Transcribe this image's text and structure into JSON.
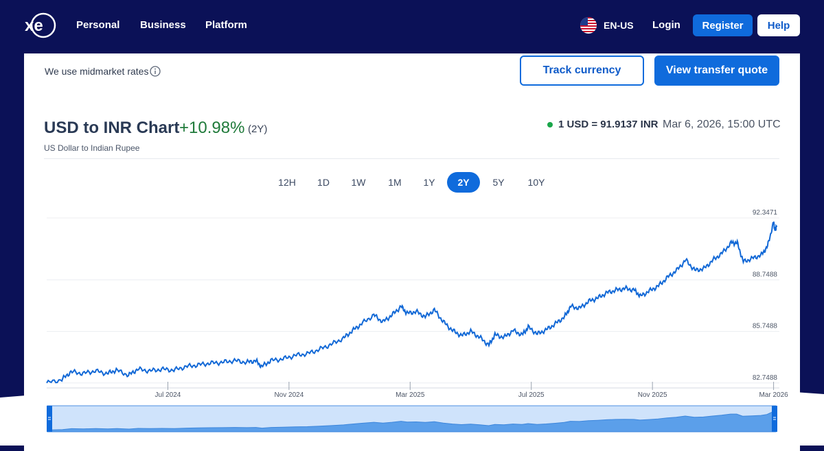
{
  "header": {
    "nav": [
      "Personal",
      "Business",
      "Platform"
    ],
    "language": "EN-US",
    "login_label": "Login",
    "register_label": "Register",
    "help_label": "Help"
  },
  "card": {
    "midmarket_text": "We use midmarket rates",
    "track_label": "Track currency",
    "quote_label": "View transfer quote"
  },
  "chart_header": {
    "title": "USD to INR Chart",
    "change": "+10.98%",
    "period": "(2Y)",
    "subtitle": "US Dollar to Indian Rupee",
    "rate": "1 USD = 91.9137 INR",
    "timestamp": "Mar 6, 2026, 15:00 UTC"
  },
  "ranges": [
    "12H",
    "1D",
    "1W",
    "1M",
    "1Y",
    "2Y",
    "5Y",
    "10Y"
  ],
  "active_range": "2Y",
  "colors": {
    "accent": "#0f6bdc",
    "positive": "#1f7a3a",
    "line": "#1168d6"
  },
  "chart_data": {
    "type": "line",
    "series_name": "",
    "y_ticks": [
      "92.3471",
      "88.7488",
      "85.7488",
      "82.7488"
    ],
    "y_tick_values": [
      92.3471,
      88.7488,
      85.7488,
      82.7488
    ],
    "ylim": [
      82.5,
      92.3471
    ],
    "x_ticks": [
      "Jul 2024",
      "Nov 2024",
      "Mar 2025",
      "Jul 2025",
      "Nov 2025",
      "Mar 2026"
    ],
    "x_tick_months": [
      4,
      8,
      12,
      16,
      20,
      24
    ],
    "grid": true,
    "values": [
      {
        "m": 0.0,
        "v": 82.75
      },
      {
        "m": 0.5,
        "v": 82.95
      },
      {
        "m": 0.8,
        "v": 83.4
      },
      {
        "m": 1.2,
        "v": 83.3
      },
      {
        "m": 1.6,
        "v": 83.45
      },
      {
        "m": 2.0,
        "v": 83.3
      },
      {
        "m": 2.3,
        "v": 83.5
      },
      {
        "m": 2.7,
        "v": 83.2
      },
      {
        "m": 3.0,
        "v": 83.55
      },
      {
        "m": 3.4,
        "v": 83.45
      },
      {
        "m": 3.8,
        "v": 83.55
      },
      {
        "m": 4.2,
        "v": 83.5
      },
      {
        "m": 4.6,
        "v": 83.7
      },
      {
        "m": 5.0,
        "v": 83.8
      },
      {
        "m": 5.4,
        "v": 83.9
      },
      {
        "m": 5.8,
        "v": 83.95
      },
      {
        "m": 6.2,
        "v": 84.05
      },
      {
        "m": 6.6,
        "v": 83.95
      },
      {
        "m": 6.9,
        "v": 84.05
      },
      {
        "m": 7.1,
        "v": 83.7
      },
      {
        "m": 7.4,
        "v": 84.05
      },
      {
        "m": 7.8,
        "v": 84.15
      },
      {
        "m": 8.2,
        "v": 84.35
      },
      {
        "m": 8.6,
        "v": 84.45
      },
      {
        "m": 9.0,
        "v": 84.7
      },
      {
        "m": 9.4,
        "v": 85.0
      },
      {
        "m": 9.8,
        "v": 85.35
      },
      {
        "m": 10.1,
        "v": 85.8
      },
      {
        "m": 10.4,
        "v": 86.2
      },
      {
        "m": 10.8,
        "v": 86.7
      },
      {
        "m": 11.1,
        "v": 86.3
      },
      {
        "m": 11.4,
        "v": 86.7
      },
      {
        "m": 11.7,
        "v": 87.2
      },
      {
        "m": 11.9,
        "v": 86.8
      },
      {
        "m": 12.2,
        "v": 86.9
      },
      {
        "m": 12.5,
        "v": 86.6
      },
      {
        "m": 12.8,
        "v": 87.0
      },
      {
        "m": 13.1,
        "v": 86.3
      },
      {
        "m": 13.4,
        "v": 85.8
      },
      {
        "m": 13.7,
        "v": 85.5
      },
      {
        "m": 14.0,
        "v": 85.75
      },
      {
        "m": 14.3,
        "v": 85.4
      },
      {
        "m": 14.6,
        "v": 84.95
      },
      {
        "m": 14.8,
        "v": 85.55
      },
      {
        "m": 15.1,
        "v": 85.4
      },
      {
        "m": 15.4,
        "v": 85.8
      },
      {
        "m": 15.7,
        "v": 85.55
      },
      {
        "m": 15.9,
        "v": 86.0
      },
      {
        "m": 16.2,
        "v": 85.6
      },
      {
        "m": 16.5,
        "v": 85.85
      },
      {
        "m": 16.8,
        "v": 86.2
      },
      {
        "m": 17.1,
        "v": 86.6
      },
      {
        "m": 17.3,
        "v": 87.2
      },
      {
        "m": 17.6,
        "v": 87.1
      },
      {
        "m": 17.9,
        "v": 87.5
      },
      {
        "m": 18.2,
        "v": 87.7
      },
      {
        "m": 18.5,
        "v": 88.0
      },
      {
        "m": 18.8,
        "v": 88.15
      },
      {
        "m": 19.1,
        "v": 88.25
      },
      {
        "m": 19.4,
        "v": 88.15
      },
      {
        "m": 19.6,
        "v": 87.8
      },
      {
        "m": 19.9,
        "v": 88.1
      },
      {
        "m": 20.2,
        "v": 88.4
      },
      {
        "m": 20.5,
        "v": 88.9
      },
      {
        "m": 20.8,
        "v": 89.3
      },
      {
        "m": 21.1,
        "v": 89.9
      },
      {
        "m": 21.4,
        "v": 89.3
      },
      {
        "m": 21.7,
        "v": 89.4
      },
      {
        "m": 22.0,
        "v": 89.9
      },
      {
        "m": 22.3,
        "v": 90.3
      },
      {
        "m": 22.6,
        "v": 90.9
      },
      {
        "m": 22.8,
        "v": 90.9
      },
      {
        "m": 23.0,
        "v": 89.8
      },
      {
        "m": 23.3,
        "v": 90.0
      },
      {
        "m": 23.6,
        "v": 90.2
      },
      {
        "m": 23.8,
        "v": 90.7
      },
      {
        "m": 24.0,
        "v": 92.1
      },
      {
        "m": 24.05,
        "v": 91.6
      },
      {
        "m": 24.1,
        "v": 91.91
      }
    ]
  }
}
